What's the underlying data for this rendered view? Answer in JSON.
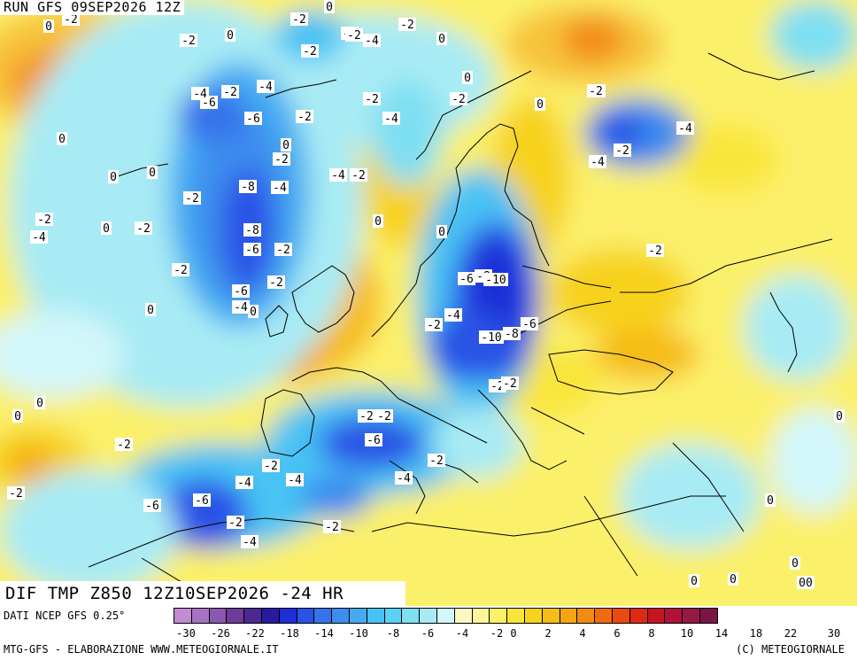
{
  "header": {
    "run_title": "RUN GFS 09SEP2026 12Z"
  },
  "panel": {
    "field_title": "DIF TMP Z850 12Z10SEP2026 -24 HR"
  },
  "source": {
    "text": "DATI NCEP GFS 0.25°"
  },
  "footer": {
    "left": "MTG-GFS - ELABORAZIONE WWW.METEOGIORNALE.IT",
    "right": "(C) METEOGIORNALE"
  },
  "legend": {
    "colors": [
      "#c38bd2",
      "#a673c4",
      "#8b57b0",
      "#6e3c9a",
      "#4a2990",
      "#2a1aa0",
      "#1c2ed6",
      "#2a52e6",
      "#3672ea",
      "#3e8cee",
      "#45aaf2",
      "#48c2f4",
      "#5ad2f4",
      "#7fdff2",
      "#a8ebf4",
      "#d2f6fa",
      "#fbf8c2",
      "#fcf59a",
      "#fbf06a",
      "#f9e63a",
      "#f7d21e",
      "#f6bc18",
      "#f5a514",
      "#f38b12",
      "#f06a10",
      "#ea4a12",
      "#dc2a14",
      "#c81420",
      "#b01238",
      "#961844",
      "#7a1646"
    ],
    "tick_labels": [
      "-30",
      "-26",
      "-22",
      "-18",
      "-14",
      "-10",
      "-8",
      "-6",
      "-4",
      "-2",
      "0",
      "2",
      "4",
      "6",
      "8",
      "10",
      "14",
      "18",
      "22",
      "30"
    ]
  },
  "map": {
    "labels": [
      {
        "t": "-2"
      },
      {
        "t": "0"
      },
      {
        "t": "-2"
      },
      {
        "t": "0"
      },
      {
        "t": "-2"
      },
      {
        "t": "-2"
      },
      {
        "t": "-2"
      },
      {
        "t": "0"
      },
      {
        "t": "-2"
      },
      {
        "t": "-4"
      },
      {
        "t": "-2"
      },
      {
        "t": "-4"
      },
      {
        "t": "-6"
      },
      {
        "t": "-2"
      },
      {
        "t": "-4"
      },
      {
        "t": "-2"
      },
      {
        "t": "-6"
      },
      {
        "t": "-2"
      },
      {
        "t": "-2"
      },
      {
        "t": "-4"
      },
      {
        "t": "-2"
      },
      {
        "t": "0"
      },
      {
        "t": "0"
      },
      {
        "t": "-2"
      },
      {
        "t": "-4"
      },
      {
        "t": "-4"
      },
      {
        "t": "-2"
      },
      {
        "t": "-8"
      },
      {
        "t": "-2"
      },
      {
        "t": "0"
      },
      {
        "t": "-2"
      },
      {
        "t": "-4"
      },
      {
        "t": "-2"
      },
      {
        "t": "0"
      },
      {
        "t": "-8"
      },
      {
        "t": "-6"
      },
      {
        "t": "-2"
      },
      {
        "t": "-2"
      },
      {
        "t": "-6"
      },
      {
        "t": "-2"
      },
      {
        "t": "-4"
      },
      {
        "t": "0"
      },
      {
        "t": "0"
      },
      {
        "t": "-2"
      },
      {
        "t": "-4"
      },
      {
        "t": "-6"
      },
      {
        "t": "-8"
      },
      {
        "t": "-10"
      },
      {
        "t": "-4"
      },
      {
        "t": "-2"
      },
      {
        "t": "-10"
      },
      {
        "t": "-8"
      },
      {
        "t": "-6"
      },
      {
        "t": "-2"
      },
      {
        "t": "-2"
      },
      {
        "t": "-2"
      },
      {
        "t": "-4"
      },
      {
        "t": "-6"
      },
      {
        "t": "-2"
      },
      {
        "t": "-4"
      },
      {
        "t": "-2"
      },
      {
        "t": "-4"
      },
      {
        "t": "-6"
      },
      {
        "t": "-2"
      },
      {
        "t": "-4"
      },
      {
        "t": "-2"
      },
      {
        "t": "-2"
      },
      {
        "t": "-2"
      },
      {
        "t": "-6"
      },
      {
        "t": "-4"
      },
      {
        "t": "-2"
      },
      {
        "t": "-4"
      },
      {
        "t": "-2"
      },
      {
        "t": "-2"
      },
      {
        "t": "0"
      },
      {
        "t": "0"
      },
      {
        "t": "0"
      },
      {
        "t": "0"
      },
      {
        "t": "0"
      },
      {
        "t": "0"
      },
      {
        "t": "0"
      },
      {
        "t": "0"
      },
      {
        "t": "00"
      },
      {
        "t": "0"
      },
      {
        "t": "0"
      },
      {
        "t": "0"
      },
      {
        "t": "0"
      },
      {
        "t": "0"
      }
    ]
  }
}
